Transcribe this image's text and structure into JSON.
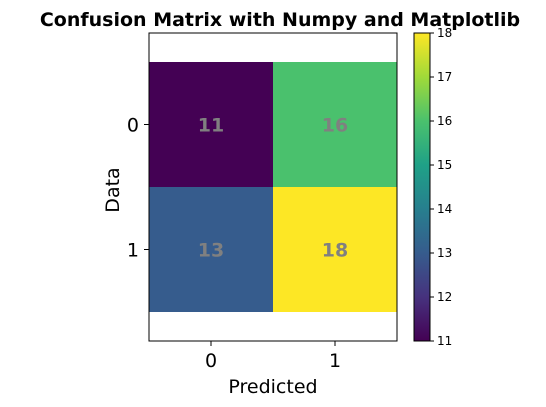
{
  "chart_data": {
    "type": "heatmap",
    "title": "Confusion Matrix with Numpy and Matplotlib",
    "xlabel": "Predicted",
    "ylabel": "Data",
    "x_categories": [
      "0",
      "1"
    ],
    "y_categories": [
      "0",
      "1"
    ],
    "values": [
      [
        11,
        16
      ],
      [
        13,
        18
      ]
    ],
    "colormap": "viridis",
    "color_range": [
      11,
      18
    ],
    "colorbar_ticks": [
      "11",
      "12",
      "13",
      "14",
      "15",
      "16",
      "17",
      "18"
    ],
    "cell_label_color": "#808080",
    "grid": false
  }
}
